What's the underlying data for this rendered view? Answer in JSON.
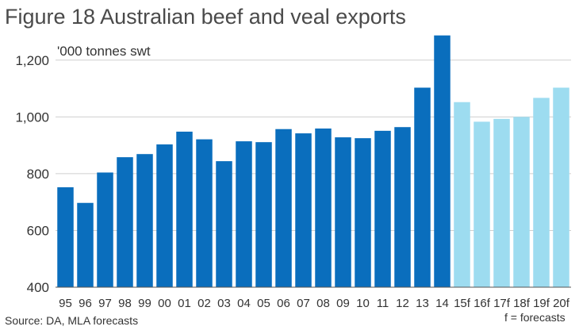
{
  "title": "Figure 18 Australian beef and veal exports",
  "unit_label": "'000 tonnes swt",
  "source": "Source: DA, MLA forecasts",
  "forecast_note": "f = forecasts",
  "colors": {
    "actual": "#0a6ebd",
    "forecast": "#9ddcf0",
    "grid": "#cfcfcf",
    "axis": "#555555"
  },
  "chart_data": {
    "type": "bar",
    "title": "Figure 18 Australian beef and veal exports",
    "ylabel": "'000 tonnes swt",
    "xlabel": "",
    "ylim": [
      400,
      1300
    ],
    "yticks": [
      400,
      600,
      800,
      1000,
      1200
    ],
    "grid": true,
    "categories": [
      "95",
      "96",
      "97",
      "98",
      "99",
      "00",
      "01",
      "02",
      "03",
      "04",
      "05",
      "06",
      "07",
      "08",
      "09",
      "10",
      "11",
      "12",
      "13",
      "14",
      "15f",
      "16f",
      "17f",
      "18f",
      "19f",
      "20f"
    ],
    "values": [
      752,
      697,
      804,
      858,
      869,
      903,
      948,
      921,
      844,
      914,
      911,
      957,
      942,
      959,
      928,
      925,
      951,
      964,
      1103,
      1287,
      1052,
      983,
      993,
      1000,
      1067,
      1103
    ],
    "forecast": [
      false,
      false,
      false,
      false,
      false,
      false,
      false,
      false,
      false,
      false,
      false,
      false,
      false,
      false,
      false,
      false,
      false,
      false,
      false,
      false,
      true,
      true,
      true,
      true,
      true,
      true
    ]
  }
}
